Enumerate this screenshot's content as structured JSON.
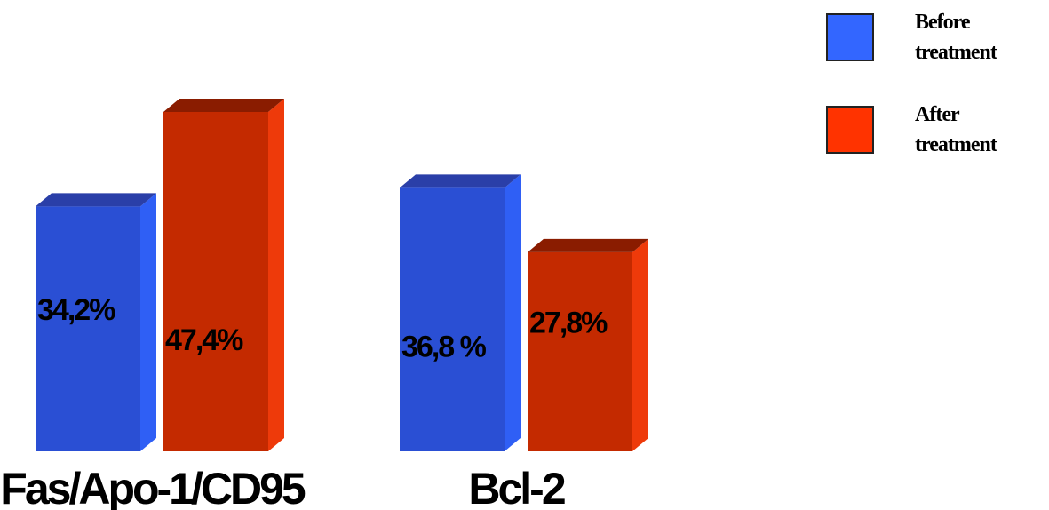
{
  "chart_data": {
    "type": "bar",
    "categories": [
      "Fas/Apo-1/CD95",
      "Bcl-2"
    ],
    "series": [
      {
        "name": "Before treatment",
        "values": [
          34.2,
          36.8
        ],
        "labels": [
          "34,2%",
          "36,8 %"
        ],
        "color": "#2a4fd4"
      },
      {
        "name": "After treatment",
        "values": [
          47.4,
          27.8
        ],
        "labels": [
          "47,4%",
          "27,8%"
        ],
        "color": "#c42a00"
      }
    ],
    "title": "",
    "xlabel": "",
    "ylabel": "",
    "ylim": [
      0,
      50
    ],
    "grid": false,
    "legend": {
      "position": "top-right",
      "entries": [
        {
          "line1": "Before",
          "line2": "treatment"
        },
        {
          "line1": "After",
          "line2": "treatment"
        }
      ]
    }
  },
  "colors": {
    "before_front": "#2a4fd4",
    "before_side": "#2f5ff5",
    "before_top": "#2a3fa8",
    "before_legend": "#3366ff",
    "after_front": "#c42a00",
    "after_side": "#ee3a0a",
    "after_top": "#8a1c00",
    "after_legend": "#ff3300"
  }
}
